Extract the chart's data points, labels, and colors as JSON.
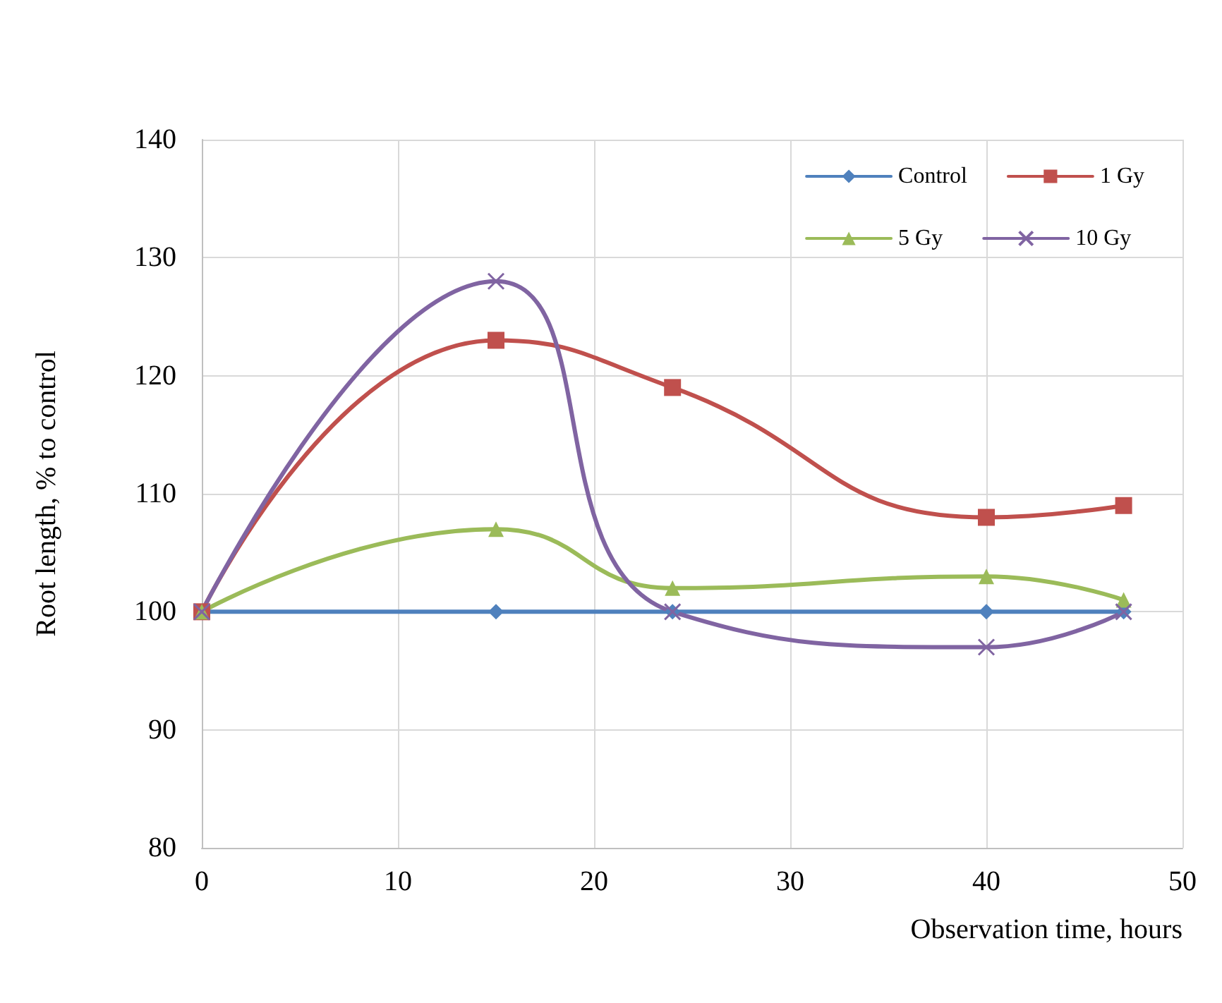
{
  "chart_data": {
    "type": "line",
    "xlabel": "Observation time, hours",
    "ylabel": "Root length, % to control",
    "x": [
      0,
      15,
      24,
      40,
      47
    ],
    "series": [
      {
        "name": "Control",
        "color": "#4f81bd",
        "marker": "diamond",
        "values": [
          100,
          100,
          100,
          100,
          100
        ]
      },
      {
        "name": "1 Gy",
        "color": "#c0504d",
        "marker": "square",
        "values": [
          100,
          123,
          119,
          108,
          109
        ]
      },
      {
        "name": "5 Gy",
        "color": "#9bbb59",
        "marker": "triangle",
        "values": [
          100,
          107,
          102,
          103,
          101
        ]
      },
      {
        "name": "10 Gy",
        "color": "#8064a2",
        "marker": "cross",
        "values": [
          100,
          128,
          100,
          97,
          100
        ]
      }
    ],
    "xlim": [
      0,
      50
    ],
    "xticks": [
      0,
      10,
      20,
      30,
      40,
      50
    ],
    "ylim": [
      80,
      140
    ],
    "yticks": [
      80,
      90,
      100,
      110,
      120,
      130,
      140
    ],
    "grid": true,
    "legend": "top right",
    "line_style": "solid"
  }
}
